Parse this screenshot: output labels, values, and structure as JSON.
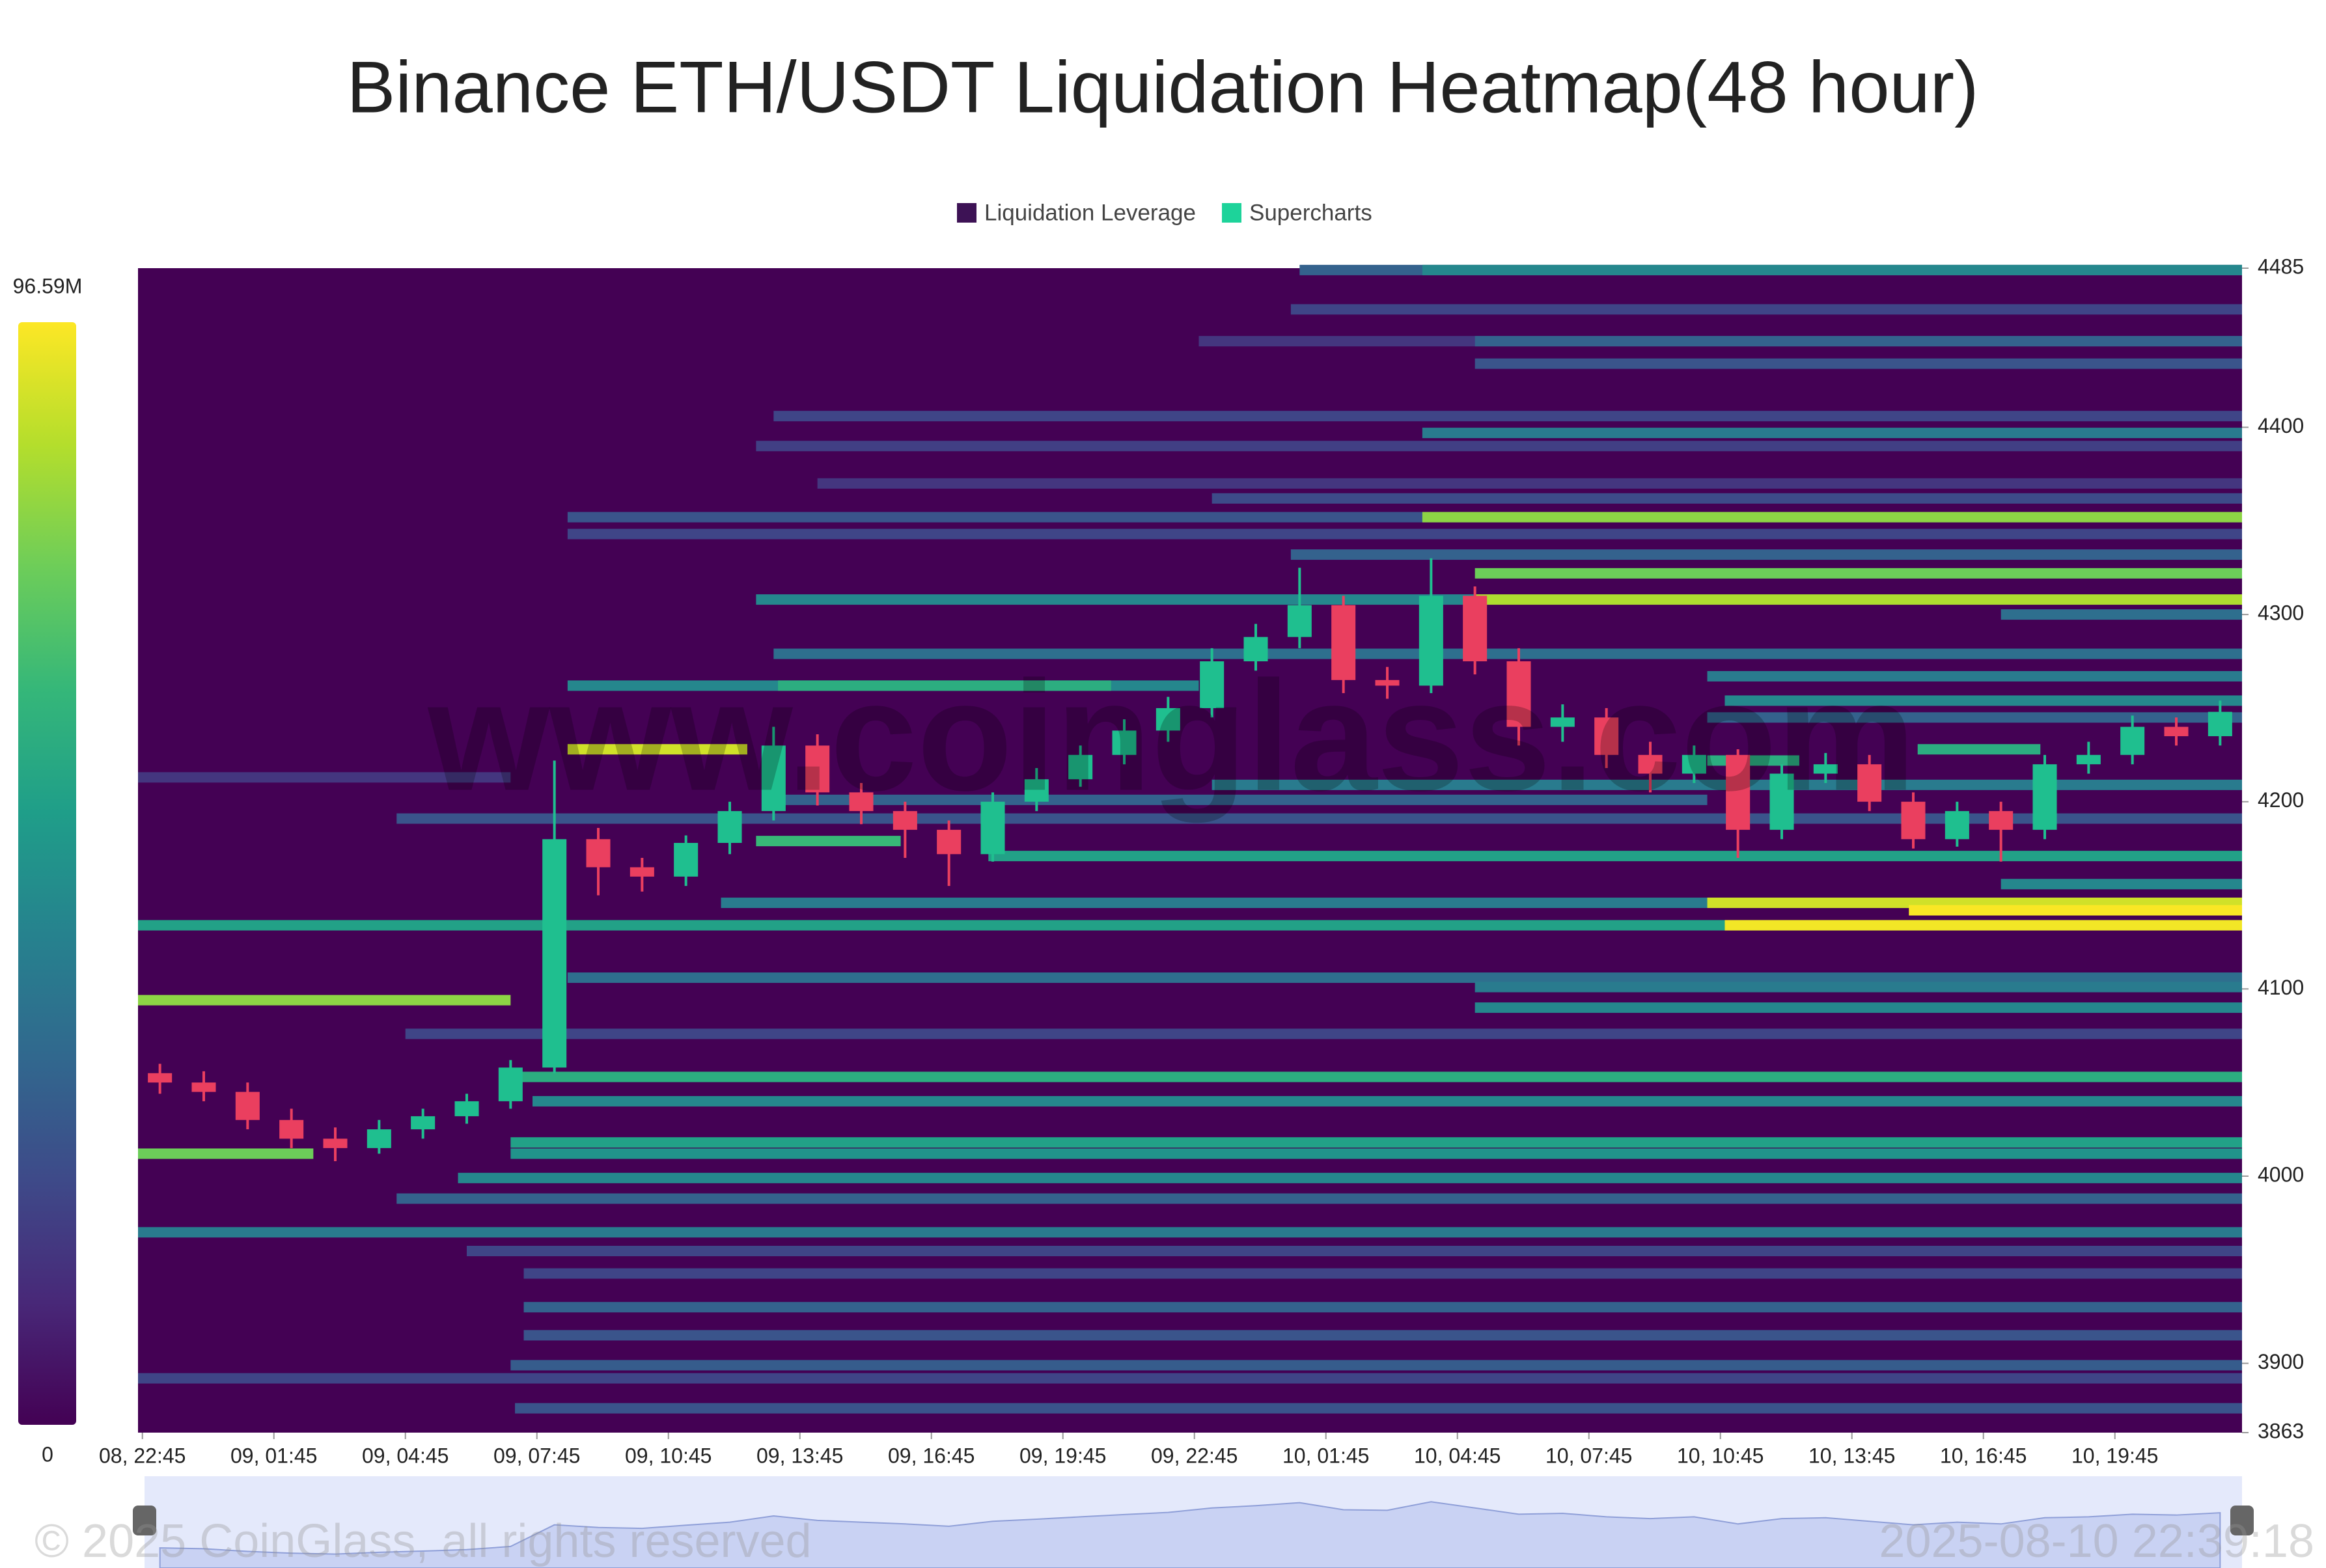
{
  "chart_data": {
    "type": "heatmap",
    "title": "Binance ETH/USDT Liquidation Heatmap(48 hour)",
    "legend": [
      {
        "name": "Liquidation Leverage",
        "color": "#3d1255"
      },
      {
        "name": "Supercharts",
        "color": "#1dd39a"
      }
    ],
    "watermark": "www.coinglass.com",
    "footer_left": "© 2025 CoinGlass, all rights reserved",
    "footer_right": "2025-08-10 22:39:18",
    "clim": [
      0,
      96.59
    ],
    "cticks": [
      0,
      {
        "value": 96.59,
        "label": "96.59M"
      }
    ],
    "xlim": [
      0,
      48
    ],
    "xticks": [
      {
        "value": 0.1,
        "label": "08, 22:45"
      },
      {
        "value": 3.1,
        "label": "09, 01:45"
      },
      {
        "value": 6.1,
        "label": "09, 04:45"
      },
      {
        "value": 9.1,
        "label": "09, 07:45"
      },
      {
        "value": 12.1,
        "label": "09, 10:45"
      },
      {
        "value": 15.1,
        "label": "09, 13:45"
      },
      {
        "value": 18.1,
        "label": "09, 16:45"
      },
      {
        "value": 21.1,
        "label": "09, 19:45"
      },
      {
        "value": 24.1,
        "label": "09, 22:45"
      },
      {
        "value": 27.1,
        "label": "10, 01:45"
      },
      {
        "value": 30.1,
        "label": "10, 04:45"
      },
      {
        "value": 33.1,
        "label": "10, 07:45"
      },
      {
        "value": 36.1,
        "label": "10, 10:45"
      },
      {
        "value": 39.1,
        "label": "10, 13:45"
      },
      {
        "value": 42.1,
        "label": "10, 16:45"
      },
      {
        "value": 45.1,
        "label": "10, 19:45"
      }
    ],
    "ylim": [
      3863,
      4485
    ],
    "yticks": [
      3863,
      3900,
      4000,
      4100,
      4200,
      4300,
      4400,
      4485
    ],
    "bands": [
      {
        "price": 4484,
        "x0": 26.5,
        "x1": 48,
        "value": 30
      },
      {
        "price": 4484,
        "x0": 29.3,
        "x1": 48,
        "value": 45
      },
      {
        "price": 4463,
        "x0": 26.3,
        "x1": 48,
        "value": 20
      },
      {
        "price": 4446,
        "x0": 24.2,
        "x1": 48,
        "value": 15
      },
      {
        "price": 4446,
        "x0": 30.5,
        "x1": 48,
        "value": 30
      },
      {
        "price": 4434,
        "x0": 30.5,
        "x1": 48,
        "value": 25
      },
      {
        "price": 4406,
        "x0": 14.5,
        "x1": 48,
        "value": 20
      },
      {
        "price": 4397,
        "x0": 29.3,
        "x1": 48,
        "value": 40
      },
      {
        "price": 4390,
        "x0": 14.1,
        "x1": 48,
        "value": 18
      },
      {
        "price": 4370,
        "x0": 15.5,
        "x1": 48,
        "value": 15
      },
      {
        "price": 4362,
        "x0": 24.5,
        "x1": 48,
        "value": 22
      },
      {
        "price": 4352,
        "x0": 9.8,
        "x1": 48,
        "value": 25
      },
      {
        "price": 4352,
        "x0": 29.3,
        "x1": 48,
        "value": 80
      },
      {
        "price": 4343,
        "x0": 9.8,
        "x1": 48,
        "value": 20
      },
      {
        "price": 4332,
        "x0": 26.3,
        "x1": 48,
        "value": 30
      },
      {
        "price": 4322,
        "x0": 30.5,
        "x1": 48,
        "value": 75
      },
      {
        "price": 4308,
        "x0": 14.1,
        "x1": 30.5,
        "value": 45
      },
      {
        "price": 4308,
        "x0": 30.5,
        "x1": 48,
        "value": 85
      },
      {
        "price": 4300,
        "x0": 42.5,
        "x1": 48,
        "value": 35
      },
      {
        "price": 4279,
        "x0": 14.5,
        "x1": 48,
        "value": 35
      },
      {
        "price": 4267,
        "x0": 35.8,
        "x1": 48,
        "value": 40
      },
      {
        "price": 4262,
        "x0": 9.8,
        "x1": 24.2,
        "value": 45
      },
      {
        "price": 4262,
        "x0": 14.6,
        "x1": 22.2,
        "value": 60
      },
      {
        "price": 4254,
        "x0": 36.2,
        "x1": 48,
        "value": 45
      },
      {
        "price": 4245,
        "x0": 35.8,
        "x1": 48,
        "value": 30
      },
      {
        "price": 4228,
        "x0": 9.8,
        "x1": 13.9,
        "value": 90
      },
      {
        "price": 4228,
        "x0": 40.6,
        "x1": 43.4,
        "value": 60
      },
      {
        "price": 4222,
        "x0": 35.8,
        "x1": 37.9,
        "value": 60
      },
      {
        "price": 4213,
        "x0": 0,
        "x1": 8.5,
        "value": 15
      },
      {
        "price": 4209,
        "x0": 24.5,
        "x1": 48,
        "value": 40
      },
      {
        "price": 4201,
        "x0": 14.6,
        "x1": 35.8,
        "value": 30
      },
      {
        "price": 4191,
        "x0": 5.9,
        "x1": 48,
        "value": 25
      },
      {
        "price": 4179,
        "x0": 14.1,
        "x1": 17.4,
        "value": 65
      },
      {
        "price": 4171,
        "x0": 19.4,
        "x1": 48,
        "value": 55
      },
      {
        "price": 4156,
        "x0": 42.5,
        "x1": 48,
        "value": 45
      },
      {
        "price": 4146,
        "x0": 13.3,
        "x1": 48,
        "value": 40
      },
      {
        "price": 4146,
        "x0": 35.8,
        "x1": 48,
        "value": 90
      },
      {
        "price": 4142,
        "x0": 40.4,
        "x1": 48,
        "value": 96
      },
      {
        "price": 4134,
        "x0": 0,
        "x1": 48,
        "value": 55
      },
      {
        "price": 4134,
        "x0": 36.2,
        "x1": 48,
        "value": 95
      },
      {
        "price": 4106,
        "x0": 9.8,
        "x1": 48,
        "value": 35
      },
      {
        "price": 4101,
        "x0": 30.5,
        "x1": 48,
        "value": 40
      },
      {
        "price": 4094,
        "x0": 0,
        "x1": 8.5,
        "value": 80
      },
      {
        "price": 4090,
        "x0": 30.5,
        "x1": 48,
        "value": 45
      },
      {
        "price": 4076,
        "x0": 6.1,
        "x1": 48,
        "value": 20
      },
      {
        "price": 4053,
        "x0": 8.6,
        "x1": 48,
        "value": 60
      },
      {
        "price": 4040,
        "x0": 9.0,
        "x1": 48,
        "value": 45
      },
      {
        "price": 4018,
        "x0": 8.5,
        "x1": 48,
        "value": 55
      },
      {
        "price": 4012,
        "x0": 0,
        "x1": 4.0,
        "value": 75
      },
      {
        "price": 4012,
        "x0": 8.5,
        "x1": 48,
        "value": 50
      },
      {
        "price": 3999,
        "x0": 7.3,
        "x1": 48,
        "value": 45
      },
      {
        "price": 3988,
        "x0": 5.9,
        "x1": 48,
        "value": 30
      },
      {
        "price": 3970,
        "x0": 0,
        "x1": 48,
        "value": 40
      },
      {
        "price": 3960,
        "x0": 7.5,
        "x1": 48,
        "value": 20
      },
      {
        "price": 3948,
        "x0": 8.8,
        "x1": 48,
        "value": 20
      },
      {
        "price": 3930,
        "x0": 8.8,
        "x1": 48,
        "value": 30
      },
      {
        "price": 3915,
        "x0": 8.8,
        "x1": 48,
        "value": 25
      },
      {
        "price": 3899,
        "x0": 8.5,
        "x1": 48,
        "value": 28
      },
      {
        "price": 3892,
        "x0": 0,
        "x1": 48,
        "value": 20
      },
      {
        "price": 3876,
        "x0": 8.6,
        "x1": 48,
        "value": 25
      }
    ],
    "candles": {
      "up_color": "#1fbf8f",
      "down_color": "#ea3f5f",
      "x": [
        0.5,
        1.5,
        2.5,
        3.5,
        4.5,
        5.5,
        6.5,
        7.5,
        8.5,
        9.5,
        10.5,
        11.5,
        12.5,
        13.5,
        14.5,
        15.5,
        16.5,
        17.5,
        18.5,
        19.5,
        20.5,
        21.5,
        22.5,
        23.5,
        24.5,
        25.5,
        26.5,
        27.5,
        28.5,
        29.5,
        30.5,
        31.5,
        32.5,
        33.5,
        34.5,
        35.5,
        36.5,
        37.5,
        38.5,
        39.5,
        40.5,
        41.5,
        42.5,
        43.5,
        44.5,
        45.5,
        46.5,
        47.5
      ],
      "open": [
        4055,
        4050,
        4045,
        4030,
        4020,
        4015,
        4025,
        4032,
        4040,
        4058,
        4180,
        4165,
        4160,
        4178,
        4195,
        4230,
        4205,
        4195,
        4185,
        4172,
        4200,
        4212,
        4225,
        4238,
        4250,
        4275,
        4288,
        4305,
        4265,
        4262,
        4310,
        4275,
        4240,
        4245,
        4225,
        4215,
        4225,
        4185,
        4215,
        4220,
        4200,
        4180,
        4195,
        4185,
        4220,
        4225,
        4240,
        4235
      ],
      "high": [
        4060,
        4056,
        4050,
        4036,
        4026,
        4030,
        4036,
        4044,
        4062,
        4222,
        4186,
        4170,
        4182,
        4200,
        4240,
        4236,
        4210,
        4200,
        4190,
        4205,
        4218,
        4230,
        4244,
        4256,
        4282,
        4295,
        4325,
        4310,
        4272,
        4330,
        4315,
        4282,
        4252,
        4250,
        4232,
        4230,
        4228,
        4220,
        4226,
        4225,
        4205,
        4200,
        4200,
        4225,
        4232,
        4246,
        4245,
        4254
      ],
      "low": [
        4044,
        4040,
        4025,
        4015,
        4008,
        4012,
        4020,
        4028,
        4036,
        4055,
        4150,
        4152,
        4155,
        4172,
        4190,
        4198,
        4188,
        4170,
        4155,
        4168,
        4195,
        4208,
        4220,
        4232,
        4245,
        4270,
        4282,
        4258,
        4255,
        4258,
        4268,
        4230,
        4232,
        4218,
        4205,
        4210,
        4170,
        4180,
        4210,
        4195,
        4175,
        4176,
        4168,
        4180,
        4215,
        4220,
        4230,
        4230
      ],
      "close": [
        4050,
        4045,
        4030,
        4020,
        4015,
        4025,
        4032,
        4040,
        4058,
        4180,
        4165,
        4160,
        4178,
        4195,
        4230,
        4205,
        4195,
        4185,
        4172,
        4200,
        4212,
        4225,
        4238,
        4250,
        4275,
        4288,
        4305,
        4265,
        4262,
        4310,
        4275,
        4240,
        4245,
        4225,
        4215,
        4225,
        4185,
        4215,
        4220,
        4200,
        4180,
        4195,
        4185,
        4220,
        4225,
        4240,
        4235,
        4248
      ]
    }
  }
}
